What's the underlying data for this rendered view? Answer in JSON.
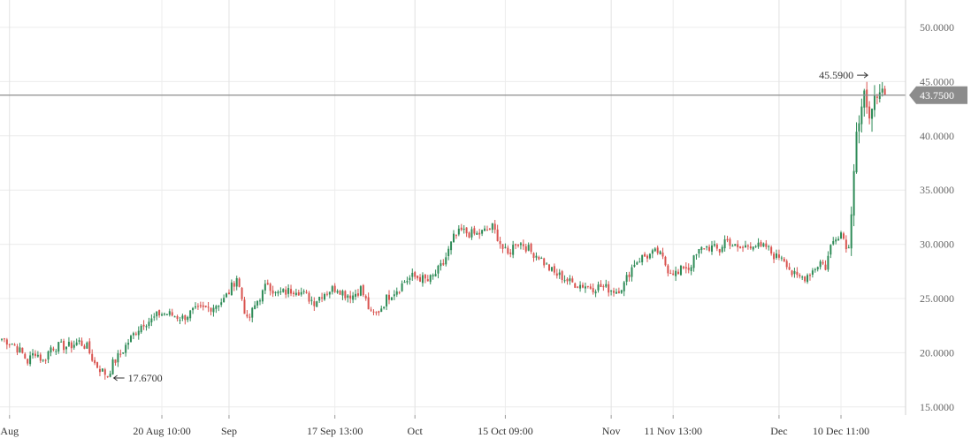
{
  "chart_data": {
    "type": "candlestick",
    "ylim": [
      14,
      52
    ],
    "y_ticks": [
      "15.0000",
      "20.0000",
      "25.0000",
      "30.0000",
      "35.0000",
      "40.0000",
      "45.0000",
      "50.0000"
    ],
    "y_tick_values": [
      15,
      20,
      25,
      30,
      35,
      40,
      45,
      50
    ],
    "x_tick_labels": [
      {
        "label": "Aug",
        "major": true,
        "bar_index": 3
      },
      {
        "label": "20 Aug 10:00",
        "major": false,
        "bar_index": 62
      },
      {
        "label": "Sep",
        "major": true,
        "bar_index": 88
      },
      {
        "label": "17 Sep 13:00",
        "major": false,
        "bar_index": 129
      },
      {
        "label": "Oct",
        "major": true,
        "bar_index": 160
      },
      {
        "label": "15 Oct 09:00",
        "major": false,
        "bar_index": 195
      },
      {
        "label": "Nov",
        "major": true,
        "bar_index": 236
      },
      {
        "label": "11 Nov 13:00",
        "major": false,
        "bar_index": 260
      },
      {
        "label": "Dec",
        "major": true,
        "bar_index": 301
      },
      {
        "label": "10 Dec 11:00",
        "major": false,
        "bar_index": 325
      }
    ],
    "high_marker": {
      "label": "45.5900",
      "value": 45.59
    },
    "low_marker": {
      "label": "17.6700",
      "value": 17.67
    },
    "last_price": {
      "label": "43.7500",
      "value": 43.75
    },
    "up_color": "#2e8b57",
    "down_color": "#d9534f",
    "price_line_color": "#8c8c8c",
    "grid": true,
    "close_path": [
      [
        0,
        21.3
      ],
      [
        4,
        20.9
      ],
      [
        8,
        19.9
      ],
      [
        10,
        19.2
      ],
      [
        13,
        20.1
      ],
      [
        16,
        19.2
      ],
      [
        19,
        20.5
      ],
      [
        22,
        20.6
      ],
      [
        26,
        20.6
      ],
      [
        30,
        21.0
      ],
      [
        33,
        20.5
      ],
      [
        36,
        19.0
      ],
      [
        39,
        18.3
      ],
      [
        41,
        17.9
      ],
      [
        43,
        19.0
      ],
      [
        46,
        19.9
      ],
      [
        49,
        21.0
      ],
      [
        52,
        22.0
      ],
      [
        55,
        22.8
      ],
      [
        58,
        23.0
      ],
      [
        61,
        23.6
      ],
      [
        64,
        23.6
      ],
      [
        67,
        23.4
      ],
      [
        70,
        23.2
      ],
      [
        74,
        23.8
      ],
      [
        78,
        24.0
      ],
      [
        82,
        24.3
      ],
      [
        86,
        24.9
      ],
      [
        88,
        25.6
      ],
      [
        91,
        27.0
      ],
      [
        93,
        25.0
      ],
      [
        95,
        22.9
      ],
      [
        97,
        23.8
      ],
      [
        99,
        24.8
      ],
      [
        101,
        25.5
      ],
      [
        103,
        26.5
      ],
      [
        106,
        25.4
      ],
      [
        110,
        25.6
      ],
      [
        114,
        25.9
      ],
      [
        118,
        25.2
      ],
      [
        121,
        24.7
      ],
      [
        124,
        25.4
      ],
      [
        127,
        25.8
      ],
      [
        130,
        26.0
      ],
      [
        133,
        25.4
      ],
      [
        136,
        25.3
      ],
      [
        139,
        25.9
      ],
      [
        141,
        24.8
      ],
      [
        143,
        23.5
      ],
      [
        145,
        23.6
      ],
      [
        147,
        24.2
      ],
      [
        149,
        25.0
      ],
      [
        151,
        25.5
      ],
      [
        154,
        26.0
      ],
      [
        156,
        26.6
      ],
      [
        159,
        27.0
      ],
      [
        162,
        26.9
      ],
      [
        165,
        26.6
      ],
      [
        167,
        27.0
      ],
      [
        169,
        27.6
      ],
      [
        171,
        28.2
      ],
      [
        173,
        29.4
      ],
      [
        175,
        30.6
      ],
      [
        178,
        31.2
      ],
      [
        181,
        31.0
      ],
      [
        184,
        30.9
      ],
      [
        187,
        31.2
      ],
      [
        190,
        31.6
      ],
      [
        192,
        30.7
      ],
      [
        194,
        29.6
      ],
      [
        196,
        29.0
      ],
      [
        199,
        30.2
      ],
      [
        202,
        30.0
      ],
      [
        205,
        29.3
      ],
      [
        208,
        28.9
      ],
      [
        211,
        28.0
      ],
      [
        214,
        27.3
      ],
      [
        217,
        27.0
      ],
      [
        220,
        26.5
      ],
      [
        223,
        26.3
      ],
      [
        226,
        26.2
      ],
      [
        229,
        26.0
      ],
      [
        232,
        26.1
      ],
      [
        235,
        25.9
      ],
      [
        238,
        25.7
      ],
      [
        241,
        26.3
      ],
      [
        243,
        27.4
      ],
      [
        245,
        28.3
      ],
      [
        248,
        28.8
      ],
      [
        251,
        29.0
      ],
      [
        254,
        29.3
      ],
      [
        256,
        28.6
      ],
      [
        258,
        27.7
      ],
      [
        260,
        27.5
      ],
      [
        262,
        27.2
      ],
      [
        264,
        28.0
      ],
      [
        266,
        27.8
      ],
      [
        268,
        28.6
      ],
      [
        270,
        29.3
      ],
      [
        272,
        29.8
      ],
      [
        275,
        29.7
      ],
      [
        278,
        29.4
      ],
      [
        280,
        30.4
      ],
      [
        282,
        30.2
      ],
      [
        285,
        29.5
      ],
      [
        288,
        29.8
      ],
      [
        291,
        30.1
      ],
      [
        294,
        29.6
      ],
      [
        296,
        29.8
      ],
      [
        298,
        29.2
      ],
      [
        300,
        28.8
      ],
      [
        302,
        29.0
      ],
      [
        304,
        28.3
      ],
      [
        306,
        27.3
      ],
      [
        308,
        26.9
      ],
      [
        311,
        27.0
      ],
      [
        314,
        27.6
      ],
      [
        317,
        28.4
      ],
      [
        319,
        27.9
      ],
      [
        321,
        29.8
      ],
      [
        323,
        30.8
      ],
      [
        325,
        31.1
      ],
      [
        327,
        30.0
      ],
      [
        328,
        29.6
      ]
    ],
    "spike_path": [
      [
        329,
        33.0
      ],
      [
        330,
        37.0
      ],
      [
        331,
        40.5
      ],
      [
        332,
        41.2
      ],
      [
        333,
        42.6
      ],
      [
        334,
        43.9
      ],
      [
        335,
        42.4
      ],
      [
        336,
        41.8
      ],
      [
        337,
        42.8
      ],
      [
        338,
        43.5
      ],
      [
        339,
        43.2
      ],
      [
        340,
        43.8
      ],
      [
        341,
        44.2
      ],
      [
        342,
        43.75
      ]
    ]
  }
}
